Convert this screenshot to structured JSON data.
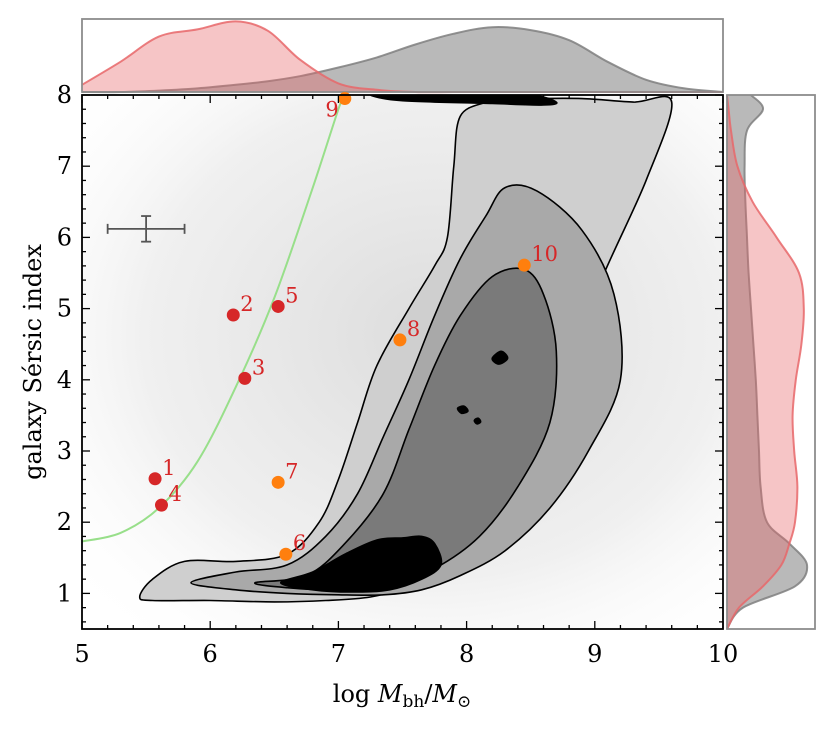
{
  "chart_data": {
    "type": "scatter",
    "xlabel": "log M_bh/M_⊙",
    "ylabel": "galaxy Sérsic index",
    "xlim": [
      5,
      10
    ],
    "ylim": [
      0.5,
      8
    ],
    "x_ticks": [
      "5",
      "6",
      "7",
      "8",
      "9",
      "10"
    ],
    "y_ticks": [
      "1",
      "2",
      "3",
      "4",
      "5",
      "6",
      "7",
      "8"
    ],
    "grid": false,
    "colors": {
      "red_points": "#d62728",
      "orange_points": "#ff7f0e",
      "point_labels": "#d62728",
      "curve": "#98df8a",
      "red_density": "#e7676a",
      "gray_density": "#7f7f7f",
      "contour_levels": [
        "#cfcfcf",
        "#a9a9a9",
        "#7a7a7a",
        "#000000"
      ]
    },
    "labeled_points": [
      {
        "label": "1",
        "x": 5.57,
        "y": 2.61,
        "color": "red"
      },
      {
        "label": "2",
        "x": 6.18,
        "y": 4.91,
        "color": "red"
      },
      {
        "label": "3",
        "x": 6.27,
        "y": 4.02,
        "color": "red"
      },
      {
        "label": "4",
        "x": 5.62,
        "y": 2.24,
        "color": "red"
      },
      {
        "label": "5",
        "x": 6.53,
        "y": 5.03,
        "color": "red"
      },
      {
        "label": "6",
        "x": 6.59,
        "y": 1.55,
        "color": "orange"
      },
      {
        "label": "7",
        "x": 6.53,
        "y": 2.56,
        "color": "orange"
      },
      {
        "label": "8",
        "x": 7.48,
        "y": 4.56,
        "color": "orange"
      },
      {
        "label": "9",
        "x": 7.05,
        "y": 7.95,
        "color": "orange"
      },
      {
        "label": "10",
        "x": 8.45,
        "y": 5.61,
        "color": "orange"
      }
    ],
    "representative_error_bar": {
      "x": 5.5,
      "y": 6.12,
      "x_err": 0.3,
      "y_err": 0.18
    },
    "curve": {
      "x": [
        5.0,
        5.3,
        5.6,
        5.9,
        6.2,
        6.5,
        6.8,
        7.0,
        7.05
      ],
      "y": [
        1.73,
        1.85,
        2.2,
        2.85,
        3.9,
        5.15,
        6.7,
        7.8,
        8.0
      ]
    },
    "contours": [
      {
        "level": 1,
        "x": [
          5.45,
          5.55,
          5.8,
          6.2,
          6.6,
          6.85,
          7.0,
          7.15,
          7.3,
          7.55,
          7.75,
          7.85,
          7.9,
          7.95,
          8.15,
          8.25,
          8.5,
          8.9,
          9.3,
          9.6,
          9.4,
          9.05,
          8.75,
          8.4,
          8.05,
          7.8,
          7.55,
          7.25,
          6.9,
          6.5,
          6.0,
          5.55
        ],
        "y": [
          0.95,
          1.2,
          1.45,
          1.45,
          1.55,
          2.0,
          2.6,
          3.4,
          4.2,
          5.0,
          5.6,
          6.0,
          7.0,
          7.7,
          7.9,
          7.95,
          7.95,
          7.95,
          7.9,
          7.9,
          6.8,
          5.4,
          4.0,
          2.8,
          1.9,
          1.4,
          1.1,
          0.95,
          0.9,
          0.88,
          0.9,
          0.9
        ]
      },
      {
        "level": 2,
        "x": [
          5.85,
          6.2,
          6.6,
          6.9,
          7.15,
          7.35,
          7.55,
          7.75,
          7.95,
          8.15,
          8.3,
          8.55,
          8.9,
          9.15,
          9.2,
          8.95,
          8.65,
          8.3,
          7.95,
          7.65,
          7.35,
          7.0,
          6.6,
          6.2
        ],
        "y": [
          1.15,
          1.3,
          1.4,
          1.8,
          2.4,
          3.2,
          4.0,
          4.9,
          5.7,
          6.3,
          6.7,
          6.65,
          6.1,
          5.2,
          4.0,
          3.0,
          2.2,
          1.6,
          1.25,
          1.05,
          0.98,
          0.98,
          1.0,
          1.05
        ]
      },
      {
        "level": 3,
        "x": [
          6.35,
          6.75,
          7.05,
          7.35,
          7.55,
          7.75,
          7.95,
          8.2,
          8.45,
          8.6,
          8.7,
          8.65,
          8.4,
          8.1,
          7.75,
          7.4,
          7.0,
          6.6
        ],
        "y": [
          1.15,
          1.25,
          1.7,
          2.4,
          3.3,
          4.2,
          4.9,
          5.45,
          5.55,
          5.2,
          4.4,
          3.4,
          2.5,
          1.8,
          1.35,
          1.12,
          1.05,
          1.08
        ]
      },
      {
        "level": 4,
        "x": [
          6.55,
          6.8,
          7.05,
          7.3,
          7.5,
          7.65,
          7.75,
          7.8,
          7.65,
          7.4,
          7.1,
          6.8
        ],
        "y": [
          1.15,
          1.3,
          1.55,
          1.75,
          1.78,
          1.8,
          1.7,
          1.4,
          1.2,
          1.05,
          1.02,
          1.05
        ]
      },
      {
        "level": 4,
        "x": [
          7.25,
          7.5,
          8.2,
          8.6,
          8.7,
          8.5,
          8.0,
          7.45
        ],
        "y": [
          8.0,
          7.92,
          7.88,
          7.86,
          7.9,
          8.0,
          8.0,
          8.0
        ]
      },
      {
        "level": 4,
        "x": [
          8.2,
          8.27,
          8.32,
          8.25
        ],
        "y": [
          4.3,
          4.4,
          4.3,
          4.22
        ]
      },
      {
        "level": 4,
        "x": [
          7.93,
          7.98,
          8.01,
          7.96
        ],
        "y": [
          3.6,
          3.63,
          3.56,
          3.53
        ]
      },
      {
        "level": 4,
        "x": [
          8.06,
          8.09,
          8.11,
          8.08
        ],
        "y": [
          3.43,
          3.46,
          3.41,
          3.38
        ]
      }
    ],
    "top_marginal": {
      "x": [
        5.0,
        5.3,
        5.6,
        5.9,
        6.2,
        6.45,
        6.7,
        7.0,
        7.3,
        7.6,
        7.9,
        8.2,
        8.5,
        8.8,
        9.1,
        9.4,
        9.7,
        10.0
      ],
      "red": [
        0.1,
        0.42,
        0.77,
        0.87,
        0.98,
        0.85,
        0.45,
        0.12,
        0.03,
        0.0,
        0.0,
        0.0,
        0.0,
        0.0,
        0.0,
        0.0,
        0.0,
        0.0
      ],
      "gray": [
        0.0,
        0.0,
        0.02,
        0.05,
        0.1,
        0.15,
        0.22,
        0.34,
        0.48,
        0.66,
        0.81,
        0.9,
        0.86,
        0.72,
        0.42,
        0.17,
        0.05,
        0.0
      ]
    },
    "right_marginal": {
      "y": [
        0.5,
        0.8,
        1.1,
        1.4,
        1.7,
        2.0,
        2.5,
        3.0,
        3.5,
        4.0,
        4.5,
        5.0,
        5.5,
        6.0,
        6.5,
        7.0,
        7.5,
        7.8,
        8.0
      ],
      "red": [
        0.0,
        0.15,
        0.45,
        0.68,
        0.78,
        0.85,
        0.88,
        0.84,
        0.82,
        0.86,
        0.93,
        0.96,
        0.9,
        0.62,
        0.32,
        0.13,
        0.05,
        0.02,
        0.0
      ],
      "gray": [
        0.0,
        0.2,
        0.85,
        1.0,
        0.78,
        0.5,
        0.42,
        0.4,
        0.38,
        0.36,
        0.33,
        0.3,
        0.27,
        0.25,
        0.23,
        0.22,
        0.25,
        0.45,
        0.3
      ]
    }
  }
}
